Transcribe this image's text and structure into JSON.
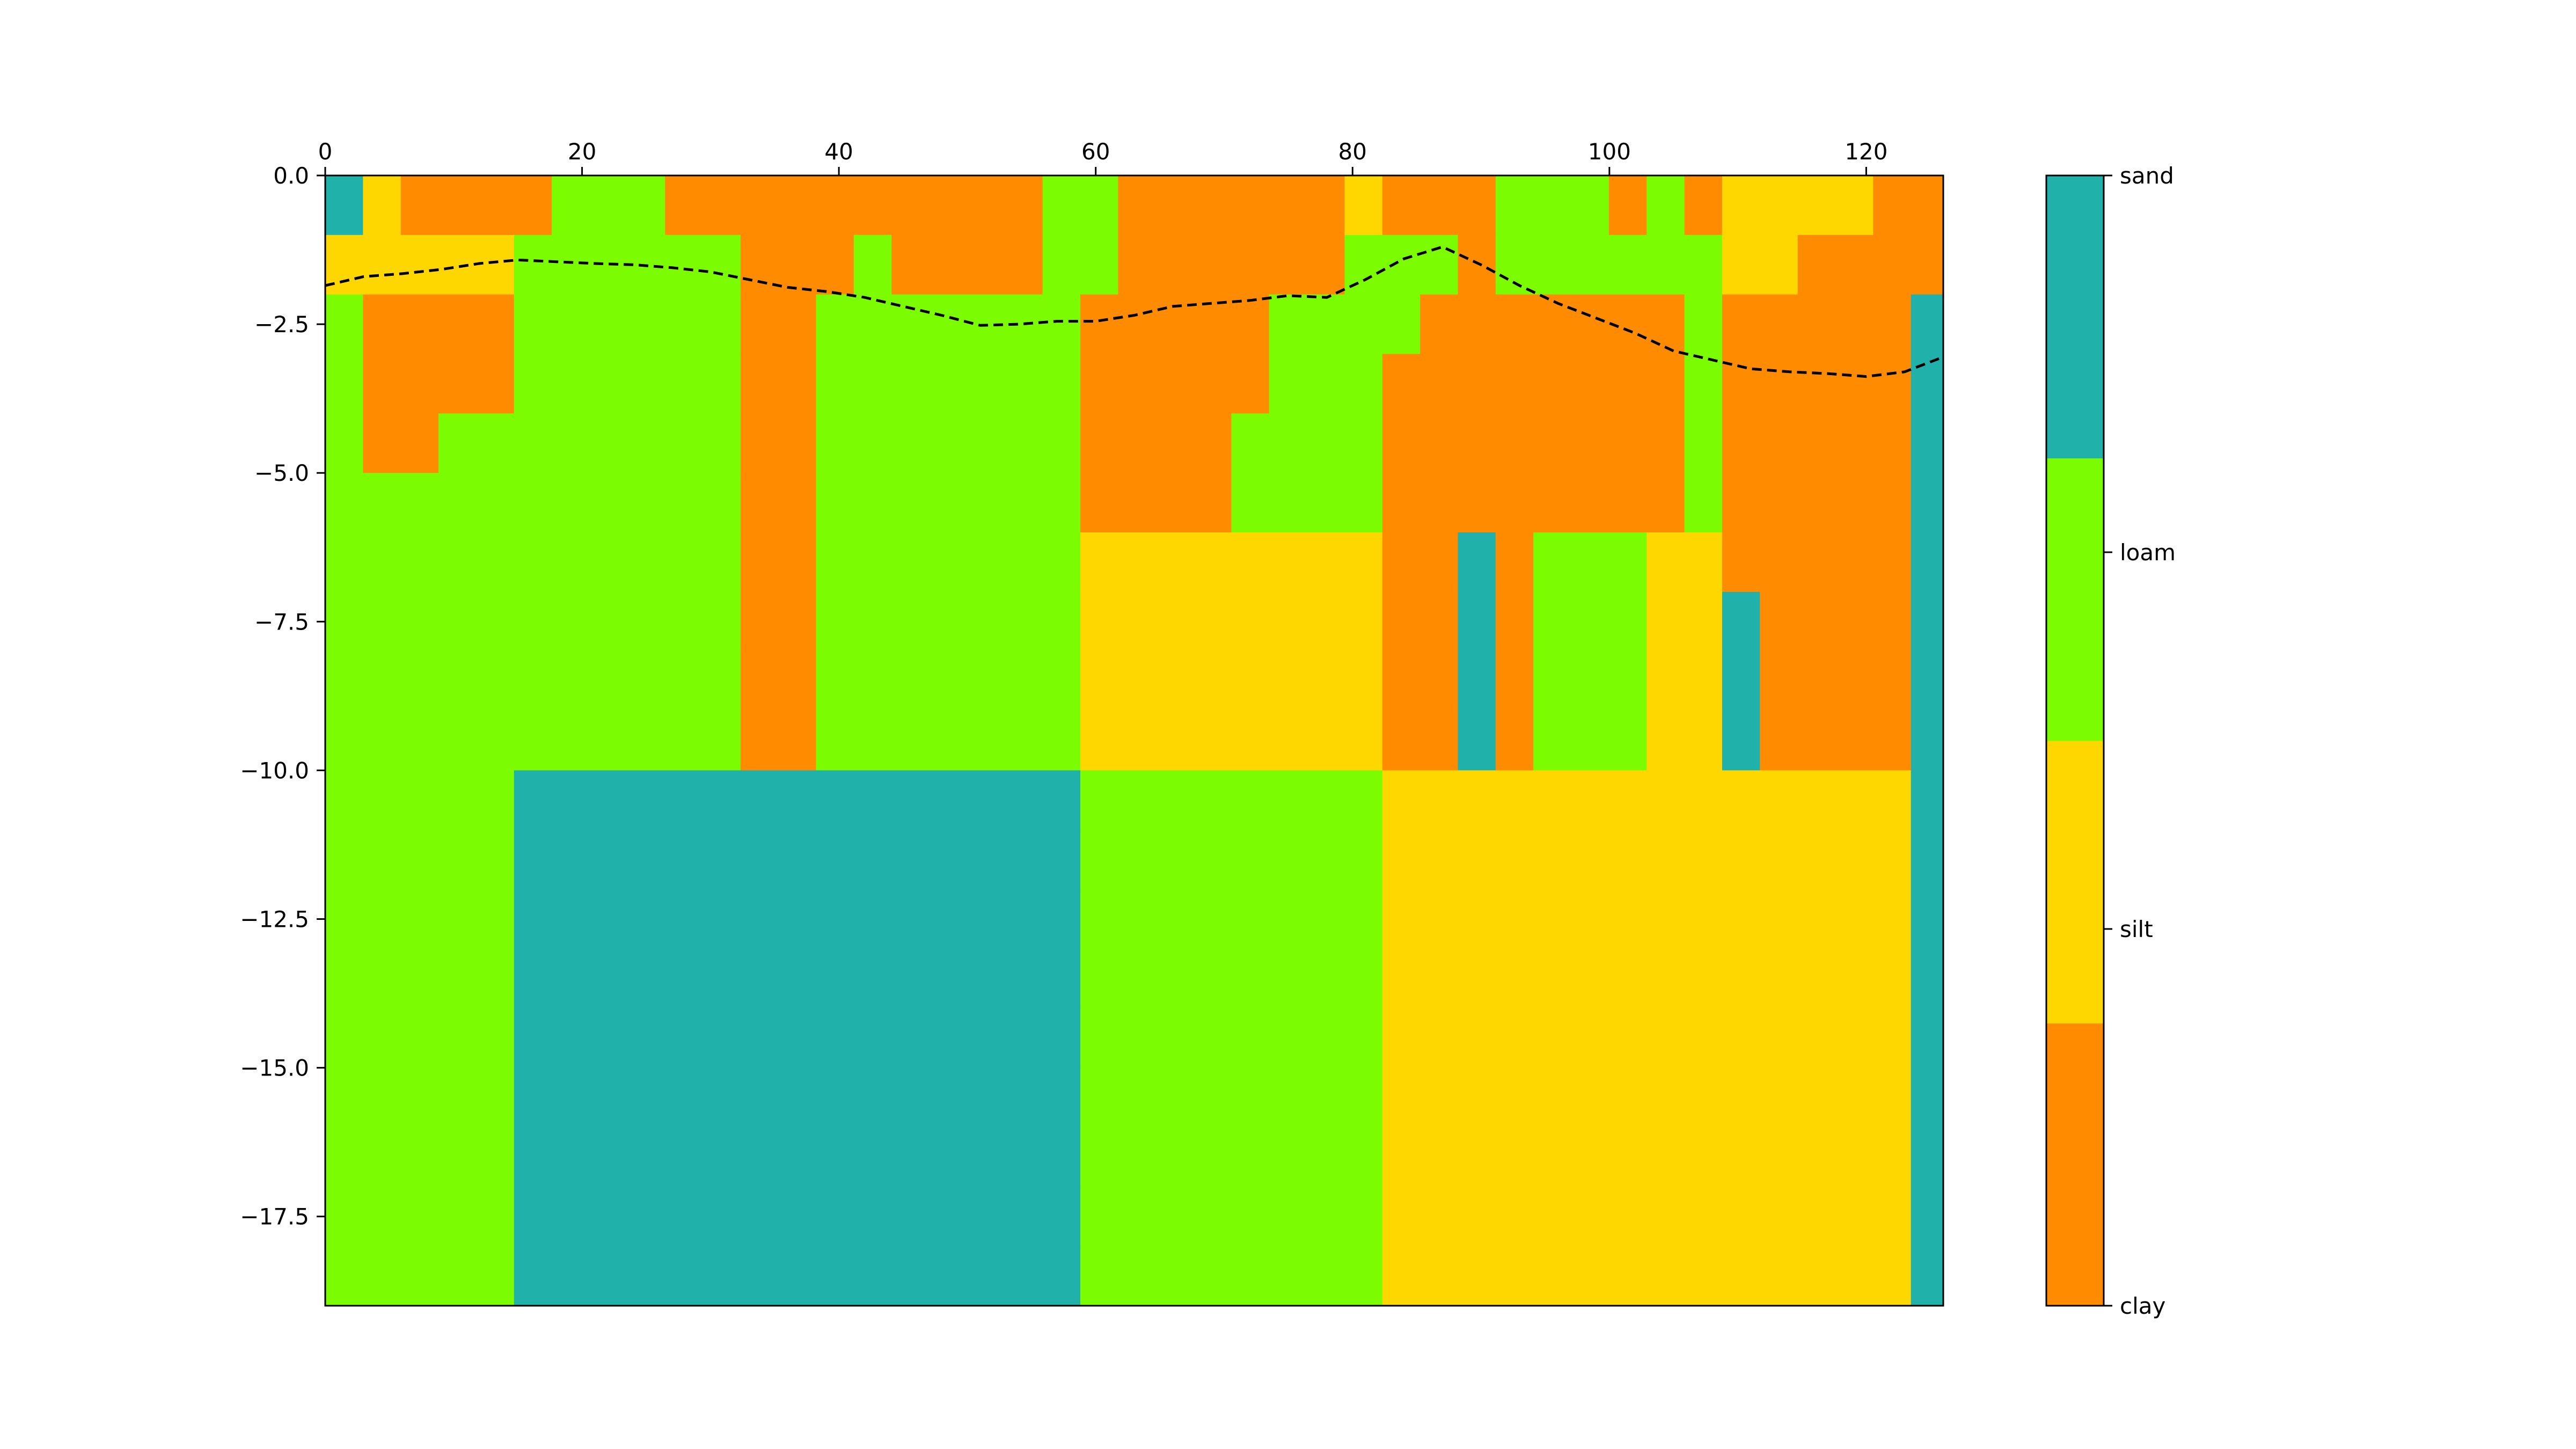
{
  "chart_data": {
    "type": "heatmap",
    "title": "",
    "xlabel": "",
    "ylabel": "",
    "xlim": [
      0,
      126
    ],
    "ylim": [
      -19,
      0
    ],
    "x_axis_position": "top",
    "grid": false,
    "x_ticks": [
      0,
      20,
      40,
      60,
      80,
      100,
      120
    ],
    "x_tick_labels": [
      "0",
      "20",
      "40",
      "60",
      "80",
      "100",
      "120"
    ],
    "y_ticks": [
      0,
      -2.5,
      -5,
      -7.5,
      -10,
      -12.5,
      -15,
      -17.5
    ],
    "y_tick_labels": [
      "0.0",
      "−2.5",
      "−5.0",
      "−7.5",
      "−10.0",
      "−12.5",
      "−15.0",
      "−17.5"
    ],
    "colorbar": {
      "position": "right",
      "categories": [
        {
          "label": "clay",
          "color": "#FF8C00"
        },
        {
          "label": "silt",
          "color": "#FFD700"
        },
        {
          "label": "loam",
          "color": "#7CFC00"
        },
        {
          "label": "sand",
          "color": "#20B2AA"
        }
      ]
    },
    "category_colors": {
      "C": "#FF8C00",
      "S": "#FFD700",
      "L": "#7CFC00",
      "A": "#20B2AA"
    },
    "category_key": {
      "C": "clay",
      "S": "silt",
      "L": "loam",
      "A": "sand"
    },
    "column_edges": [
      0,
      2.94,
      5.88,
      8.82,
      11.76,
      14.7,
      17.64,
      20.58,
      23.52,
      26.46,
      29.4,
      32.34,
      35.28,
      38.22,
      41.16,
      44.1,
      47.04,
      49.98,
      52.92,
      55.86,
      58.8,
      61.74,
      64.68,
      67.62,
      70.56,
      73.5,
      76.44,
      79.38,
      82.32,
      85.26,
      88.2,
      91.14,
      94.08,
      97.02,
      99.96,
      102.9,
      105.84,
      108.78,
      111.72,
      114.66,
      117.6,
      120.54,
      123.48,
      126
    ],
    "row_depth_step": 1,
    "cells": [
      "ASCCCCLLLCCCCCCCCCCLLCCCCCCSCCCLLLCLCSSSSCC",
      "SSSSSLLLLLLCCCLCCCCLLCCCCCCLLLCLLLLLLSSCCCC",
      "LCCCCLLLLLLCCLLLLLLLCCCCCLLLLCCCCCCCLCCCCCA",
      "LCCCCLLLLLLCCLLLLLLLCCCCCLLLCCCCCCCCLCCCCCA",
      "LCCLLLLLLLLCCLLLLLLLCCCCLLLLCCCCCCCCLCCCCCA",
      "LLLLLLLLLLLCCLLLLLLLCCCCLLLLCCCCCCCCLCCCCCA",
      "LLLLLLLLLLLCCLLLLLLLSSSSSSSSCCACLLLSSCCCCCA",
      "LLLLLLLLLLLCCLLLLLLLSSSSSSSSCCACLLLSSACCCCA",
      "LLLLLLLLLLLCCLLLLLLLSSSSSSSSCCACLLLSSACCCCA",
      "LLLLLLLLLLLCCLLLLLLLSSSSSSSSCCACLLLSSACCCCA",
      "LLLLLAAAAAAAAAAAAAAALLLLLLLLSSSSSSSSSSSSSSA",
      "LLLLLAAAAAAAAAAAAAAALLLLLLLLSSSSSSSSSSSSSSA",
      "LLLLLAAAAAAAAAAAAAAALLLLLLLLSSSSSSSSSSSSSSA",
      "LLLLLAAAAAAAAAAAAAAALLLLLLLLSSSSSSSSSSSSSSA",
      "LLLLLAAAAAAAAAAAAAAALLLLLLLLSSSSSSSSSSSSSSA",
      "LLLLLAAAAAAAAAAAAAAALLLLLLLLSSSSSSSSSSSSSSA",
      "LLLLLAAAAAAAAAAAAAAALLLLLLLLSSSSSSSSSSSSSSA",
      "LLLLLAAAAAAAAAAAAAAALLLLLLLLSSSSSSSSSSSSSSA",
      "LLLLLAAAAAAAAAAAAAAALLLLLLLLSSSSSSSSSSSSSSA"
    ],
    "boundary_line": {
      "style": "dashed",
      "color": "#000000",
      "x": [
        0,
        3,
        6,
        9,
        12,
        15,
        18,
        21,
        24,
        27,
        30,
        33,
        36,
        39,
        42,
        45,
        48,
        51,
        54,
        57,
        60,
        63,
        66,
        69,
        72,
        75,
        78,
        81,
        84,
        87,
        90,
        93,
        96,
        99,
        102,
        105,
        108,
        111,
        114,
        117,
        120,
        123,
        126
      ],
      "y": [
        -1.85,
        -1.7,
        -1.65,
        -1.58,
        -1.48,
        -1.42,
        -1.45,
        -1.48,
        -1.5,
        -1.55,
        -1.62,
        -1.75,
        -1.88,
        -1.95,
        -2.05,
        -2.2,
        -2.35,
        -2.52,
        -2.5,
        -2.45,
        -2.45,
        -2.35,
        -2.2,
        -2.15,
        -2.1,
        -2.02,
        -2.05,
        -1.75,
        -1.4,
        -1.2,
        -1.5,
        -1.85,
        -2.15,
        -2.4,
        -2.65,
        -2.95,
        -3.1,
        -3.25,
        -3.3,
        -3.33,
        -3.38,
        -3.3,
        -3.05
      ]
    }
  }
}
